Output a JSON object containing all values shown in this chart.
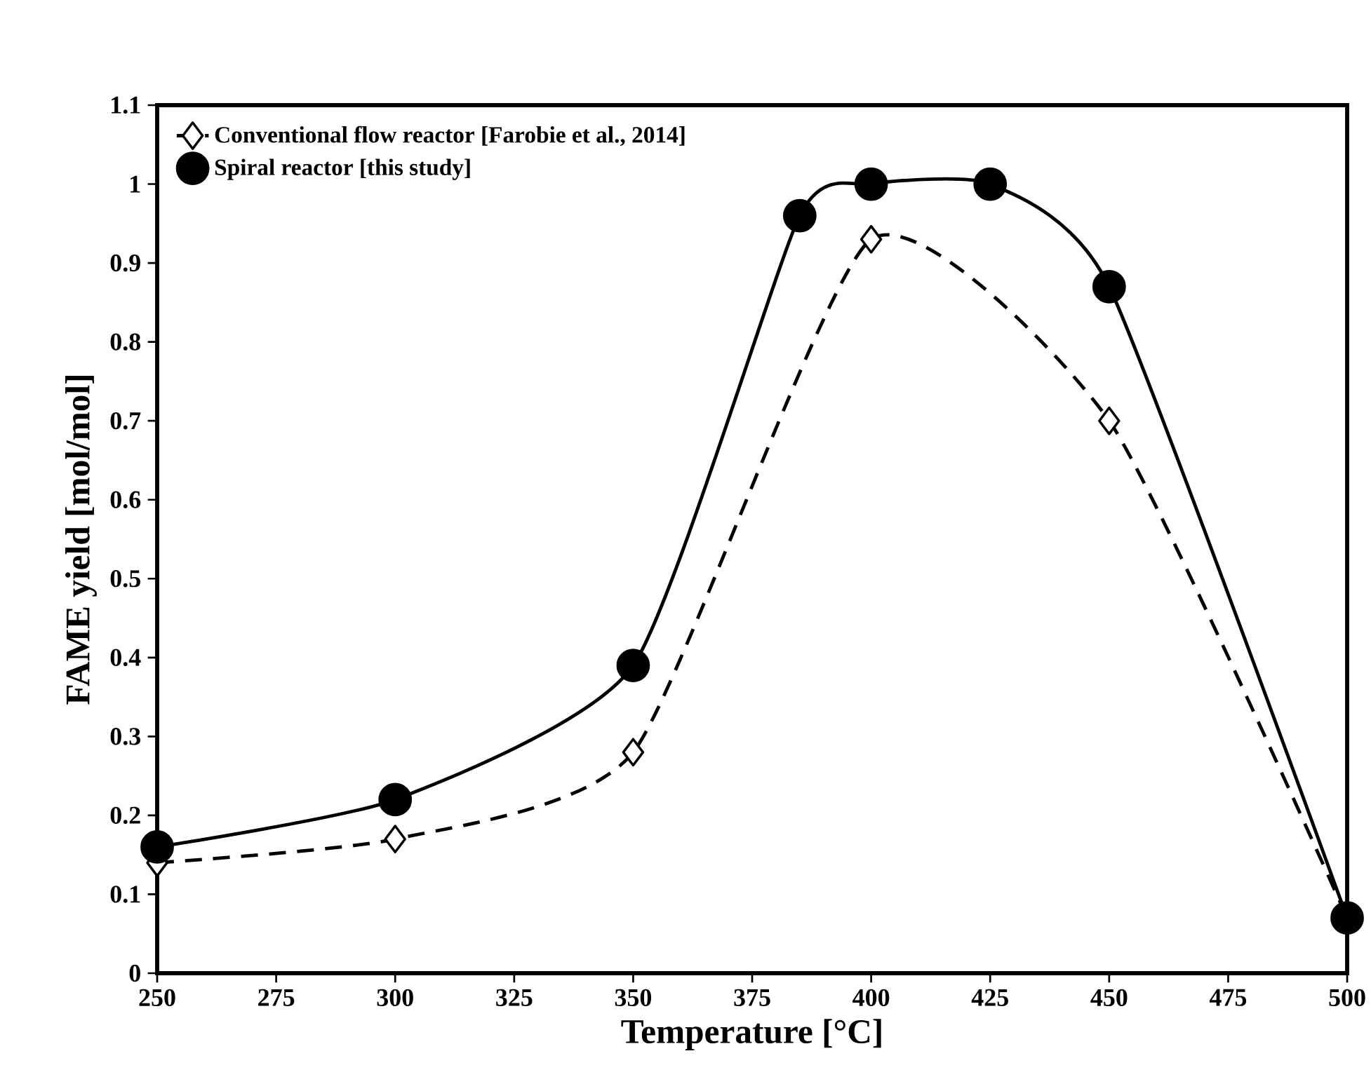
{
  "chart_data": {
    "type": "line",
    "xlabel": "Temperature [°C]",
    "ylabel": "FAME yield [mol/mol]",
    "xlim": [
      250,
      500
    ],
    "xticks": [
      250,
      275,
      300,
      325,
      350,
      375,
      400,
      425,
      450,
      475,
      500
    ],
    "ylim": [
      0,
      1.1
    ],
    "yticks": [
      0,
      0.1,
      0.2,
      0.3,
      0.4,
      0.5,
      0.6,
      0.7,
      0.8,
      0.9,
      1,
      1.1
    ],
    "grid": false,
    "legend": "top left",
    "series": [
      {
        "name": "Conventional flow reactor [Farobie et al., 2014]",
        "color": "#000000",
        "marker": "diamond",
        "line_style": "dashed",
        "x": [
          250,
          300,
          350,
          400,
          450,
          500
        ],
        "values": [
          0.14,
          0.17,
          0.28,
          0.93,
          0.7,
          0.07
        ]
      },
      {
        "name": "Spiral reactor [this study]",
        "color": "#000000",
        "marker": "circle",
        "line_style": "solid",
        "x": [
          250,
          300,
          350,
          385,
          400,
          425,
          450,
          500
        ],
        "values": [
          0.16,
          0.22,
          0.39,
          0.96,
          1.0,
          1.0,
          0.87,
          0.07
        ]
      }
    ]
  }
}
